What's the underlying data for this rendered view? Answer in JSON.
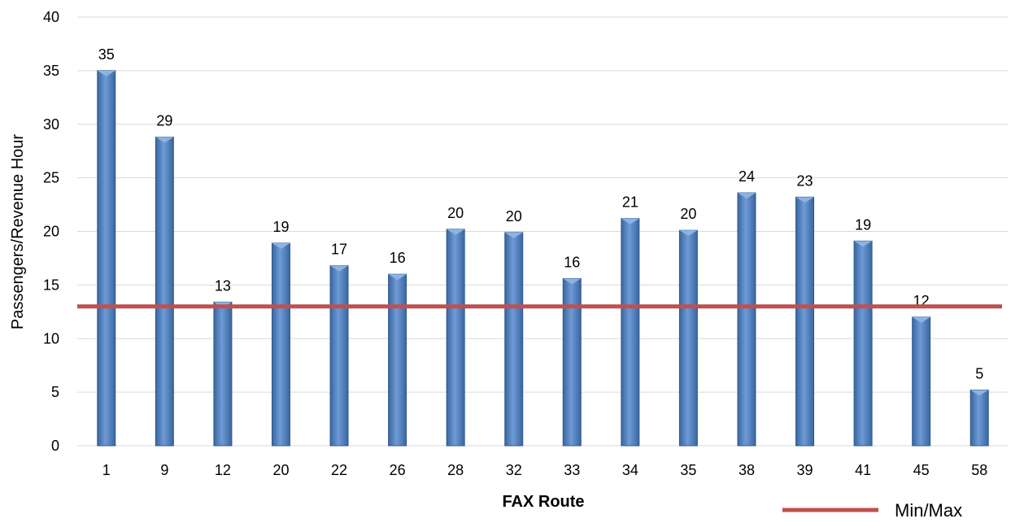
{
  "chart_data": {
    "type": "bar",
    "xlabel": "FAX Route",
    "ylabel": "Passengers/Revenue Hour",
    "ylim": [
      0,
      40
    ],
    "yticks": [
      0,
      5,
      10,
      15,
      20,
      25,
      30,
      35,
      40
    ],
    "grid": true,
    "categories": [
      "1",
      "9",
      "12",
      "20",
      "22",
      "26",
      "28",
      "32",
      "33",
      "34",
      "35",
      "38",
      "39",
      "41",
      "45",
      "58"
    ],
    "series": [
      {
        "values": [
          35,
          28.8,
          13.4,
          18.9,
          16.8,
          16.0,
          20.2,
          19.9,
          15.6,
          21.2,
          20.1,
          23.6,
          23.2,
          19.1,
          12.0,
          5.2
        ],
        "labels": [
          "35",
          "29",
          "13",
          "19",
          "17",
          "16",
          "20",
          "20",
          "16",
          "21",
          "20",
          "24",
          "23",
          "19",
          "12",
          "5"
        ],
        "color": "#4F81BD"
      }
    ],
    "reference_line": {
      "name": "Min/Max",
      "value": 13,
      "color": "#C0504D"
    },
    "legend": {
      "position": "bottom-right",
      "entries": [
        "Min/Max"
      ]
    }
  }
}
